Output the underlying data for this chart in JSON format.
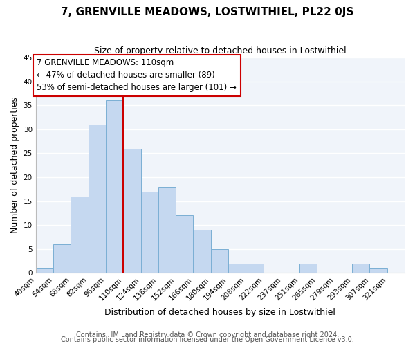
{
  "title": "7, GRENVILLE MEADOWS, LOSTWITHIEL, PL22 0JS",
  "subtitle": "Size of property relative to detached houses in Lostwithiel",
  "xlabel": "Distribution of detached houses by size in Lostwithiel",
  "ylabel": "Number of detached properties",
  "bar_values": [
    1,
    6,
    16,
    31,
    36,
    26,
    17,
    18,
    12,
    9,
    5,
    2,
    2,
    0,
    0,
    2,
    0,
    0,
    2,
    1,
    0
  ],
  "bin_edges": [
    40,
    54,
    68,
    82,
    96,
    110,
    124,
    138,
    152,
    166,
    180,
    194,
    208,
    222,
    237,
    251,
    265,
    279,
    293,
    307,
    321,
    335
  ],
  "tick_labels": [
    "40sqm",
    "54sqm",
    "68sqm",
    "82sqm",
    "96sqm",
    "110sqm",
    "124sqm",
    "138sqm",
    "152sqm",
    "166sqm",
    "180sqm",
    "194sqm",
    "208sqm",
    "222sqm",
    "237sqm",
    "251sqm",
    "265sqm",
    "279sqm",
    "293sqm",
    "307sqm",
    "321sqm"
  ],
  "bar_color": "#c5d8f0",
  "bar_edge_color": "#7bafd4",
  "vline_x": 110,
  "vline_color": "#cc0000",
  "ylim": [
    0,
    45
  ],
  "yticks": [
    0,
    5,
    10,
    15,
    20,
    25,
    30,
    35,
    40,
    45
  ],
  "annotation_title": "7 GRENVILLE MEADOWS: 110sqm",
  "annotation_line1": "← 47% of detached houses are smaller (89)",
  "annotation_line2": "53% of semi-detached houses are larger (101) →",
  "annotation_box_color": "#ffffff",
  "annotation_box_edge": "#cc0000",
  "footer_line1": "Contains HM Land Registry data © Crown copyright and database right 2024.",
  "footer_line2": "Contains public sector information licensed under the Open Government Licence v3.0.",
  "background_color": "#ffffff",
  "plot_bg_color": "#f0f4fa",
  "grid_color": "#ffffff",
  "title_fontsize": 11,
  "subtitle_fontsize": 9,
  "axis_label_fontsize": 9,
  "tick_fontsize": 7.5,
  "annotation_fontsize": 8.5,
  "footer_fontsize": 7
}
